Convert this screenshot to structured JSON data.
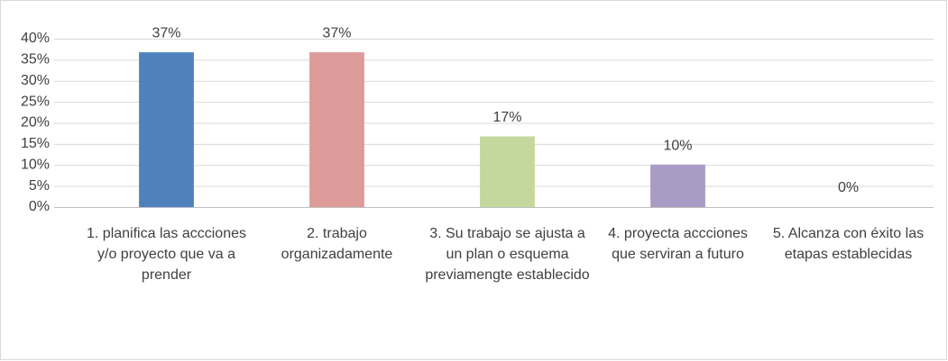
{
  "chart_data": {
    "type": "bar",
    "categories": [
      "1. planifica las accciones y/o proyecto que va a prender",
      "2. trabajo organizadamente",
      "3. Su trabajo se ajusta a un plan o esquema previamengte establecido",
      "4. proyecta accciones que serviran a futuro",
      "5. Alcanza con éxito las etapas establecidas"
    ],
    "values": [
      36.7,
      36.7,
      16.7,
      10,
      0
    ],
    "value_labels": [
      "37%",
      "37%",
      "17%",
      "10%",
      "0%"
    ],
    "colors": [
      "#4f81bd",
      "#dd9b99",
      "#c4d89e",
      "#a99bc4",
      "#7f7f7f"
    ],
    "ylim": [
      0,
      40
    ],
    "yticks": [
      {
        "value": 0,
        "label": "0%"
      },
      {
        "value": 5,
        "label": "5%"
      },
      {
        "value": 10,
        "label": "10%"
      },
      {
        "value": 15,
        "label": "15%"
      },
      {
        "value": 20,
        "label": "20%"
      },
      {
        "value": 25,
        "label": "25%"
      },
      {
        "value": 30,
        "label": "30%"
      },
      {
        "value": 35,
        "label": "35%"
      },
      {
        "value": 40,
        "label": "40%"
      }
    ],
    "grid": true
  }
}
